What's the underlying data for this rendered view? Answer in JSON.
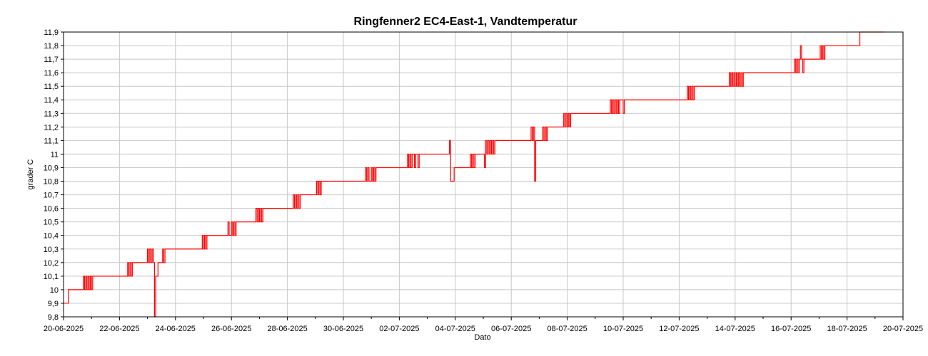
{
  "chart_data": {
    "type": "line",
    "title": "Ringfenner2 EC4-East-1, Vandtemperatur",
    "xlabel": "Dato",
    "ylabel": "grader C",
    "x_tick_labels": [
      "20-06-2025",
      "22-06-2025",
      "24-06-2025",
      "26-06-2025",
      "28-06-2025",
      "30-06-2025",
      "02-07-2025",
      "04-07-2025",
      "06-07-2025",
      "08-07-2025",
      "10-07-2025",
      "12-07-2025",
      "14-07-2025",
      "16-07-2025",
      "18-07-2025",
      "20-07-2025"
    ],
    "y_tick_labels": [
      "9,8",
      "9,9",
      "10",
      "10,1",
      "10,2",
      "10,3",
      "10,4",
      "10,5",
      "10,6",
      "10,7",
      "10,8",
      "10,9",
      "11",
      "11,1",
      "11,2",
      "11,3",
      "11,4",
      "11,5",
      "11,6",
      "11,7",
      "11,8",
      "11,9"
    ],
    "xlim": [
      "2025-06-20",
      "2025-07-20"
    ],
    "ylim": [
      9.8,
      11.9
    ],
    "grid": true,
    "series": [
      {
        "color": "#ff0000",
        "points": [
          [
            "2025-06-20T00:00",
            9.9
          ],
          [
            "2025-06-20T04:00",
            9.9
          ],
          [
            "2025-06-20T04:10",
            10.0
          ],
          [
            "2025-06-20T16:00",
            10.0
          ],
          [
            "2025-06-20T17:00",
            10.1
          ],
          [
            "2025-06-20T18:00",
            10.0
          ],
          [
            "2025-06-20T19:00",
            10.1
          ],
          [
            "2025-06-20T20:00",
            10.0
          ],
          [
            "2025-06-20T21:00",
            10.1
          ],
          [
            "2025-06-20T22:00",
            10.0
          ],
          [
            "2025-06-20T23:00",
            10.1
          ],
          [
            "2025-06-21T00:00",
            10.0
          ],
          [
            "2025-06-21T01:00",
            10.1
          ],
          [
            "2025-06-22T06:00",
            10.1
          ],
          [
            "2025-06-22T07:00",
            10.2
          ],
          [
            "2025-06-22T08:00",
            10.1
          ],
          [
            "2025-06-22T09:00",
            10.2
          ],
          [
            "2025-06-22T10:00",
            10.1
          ],
          [
            "2025-06-22T11:00",
            10.2
          ],
          [
            "2025-06-22T23:00",
            10.2
          ],
          [
            "2025-06-23T00:00",
            10.3
          ],
          [
            "2025-06-23T01:00",
            10.2
          ],
          [
            "2025-06-23T02:00",
            10.3
          ],
          [
            "2025-06-23T03:00",
            10.2
          ],
          [
            "2025-06-23T04:00",
            10.3
          ],
          [
            "2025-06-23T05:00",
            10.2
          ],
          [
            "2025-06-23T06:00",
            9.8
          ],
          [
            "2025-06-23T07:00",
            10.1
          ],
          [
            "2025-06-23T08:00",
            10.1
          ],
          [
            "2025-06-23T09:00",
            10.2
          ],
          [
            "2025-06-23T12:00",
            10.2
          ],
          [
            "2025-06-23T13:00",
            10.3
          ],
          [
            "2025-06-23T14:00",
            10.2
          ],
          [
            "2025-06-23T15:00",
            10.3
          ],
          [
            "2025-06-24T22:00",
            10.3
          ],
          [
            "2025-06-24T23:00",
            10.4
          ],
          [
            "2025-06-25T00:00",
            10.3
          ],
          [
            "2025-06-25T01:00",
            10.4
          ],
          [
            "2025-06-25T02:00",
            10.3
          ],
          [
            "2025-06-25T03:00",
            10.4
          ],
          [
            "2025-06-25T20:00",
            10.4
          ],
          [
            "2025-06-25T21:00",
            10.5
          ],
          [
            "2025-06-25T22:00",
            10.4
          ],
          [
            "2025-06-26T00:00",
            10.5
          ],
          [
            "2025-06-26T01:00",
            10.4
          ],
          [
            "2025-06-26T02:00",
            10.5
          ],
          [
            "2025-06-26T03:00",
            10.4
          ],
          [
            "2025-06-26T04:00",
            10.5
          ],
          [
            "2025-06-26T20:00",
            10.5
          ],
          [
            "2025-06-26T21:00",
            10.6
          ],
          [
            "2025-06-26T22:00",
            10.5
          ],
          [
            "2025-06-26T23:00",
            10.6
          ],
          [
            "2025-06-27T00:00",
            10.5
          ],
          [
            "2025-06-27T01:00",
            10.6
          ],
          [
            "2025-06-27T02:00",
            10.5
          ],
          [
            "2025-06-27T03:00",
            10.6
          ],
          [
            "2025-06-28T04:00",
            10.6
          ],
          [
            "2025-06-28T05:00",
            10.7
          ],
          [
            "2025-06-28T06:00",
            10.6
          ],
          [
            "2025-06-28T07:00",
            10.7
          ],
          [
            "2025-06-28T08:00",
            10.6
          ],
          [
            "2025-06-28T09:00",
            10.7
          ],
          [
            "2025-06-28T10:00",
            10.6
          ],
          [
            "2025-06-28T11:00",
            10.7
          ],
          [
            "2025-06-29T00:00",
            10.7
          ],
          [
            "2025-06-29T01:00",
            10.8
          ],
          [
            "2025-06-29T02:00",
            10.7
          ],
          [
            "2025-06-29T03:00",
            10.8
          ],
          [
            "2025-06-29T04:00",
            10.7
          ],
          [
            "2025-06-29T05:00",
            10.8
          ],
          [
            "2025-06-30T18:00",
            10.8
          ],
          [
            "2025-06-30T19:00",
            10.9
          ],
          [
            "2025-06-30T20:00",
            10.8
          ],
          [
            "2025-06-30T21:00",
            10.9
          ],
          [
            "2025-06-30T22:00",
            10.8
          ],
          [
            "2025-07-01T00:00",
            10.9
          ],
          [
            "2025-07-01T01:00",
            10.8
          ],
          [
            "2025-07-01T02:00",
            10.9
          ],
          [
            "2025-07-01T03:00",
            10.8
          ],
          [
            "2025-07-01T04:00",
            10.9
          ],
          [
            "2025-07-02T06:00",
            10.9
          ],
          [
            "2025-07-02T07:00",
            11.0
          ],
          [
            "2025-07-02T08:00",
            10.9
          ],
          [
            "2025-07-02T09:00",
            11.0
          ],
          [
            "2025-07-02T10:00",
            10.9
          ],
          [
            "2025-07-02T11:00",
            11.0
          ],
          [
            "2025-07-02T13:00",
            10.9
          ],
          [
            "2025-07-02T14:00",
            11.0
          ],
          [
            "2025-07-02T16:00",
            10.9
          ],
          [
            "2025-07-02T17:00",
            11.0
          ],
          [
            "2025-07-03T18:00",
            11.0
          ],
          [
            "2025-07-03T19:00",
            11.1
          ],
          [
            "2025-07-03T20:00",
            10.8
          ],
          [
            "2025-07-03T22:00",
            10.8
          ],
          [
            "2025-07-03T23:00",
            10.9
          ],
          [
            "2025-07-04T12:00",
            10.9
          ],
          [
            "2025-07-04T13:00",
            11.0
          ],
          [
            "2025-07-04T14:00",
            10.9
          ],
          [
            "2025-07-04T15:00",
            11.0
          ],
          [
            "2025-07-04T16:00",
            10.9
          ],
          [
            "2025-07-04T17:00",
            11.0
          ],
          [
            "2025-07-05T00:00",
            11.0
          ],
          [
            "2025-07-05T01:00",
            10.9
          ],
          [
            "2025-07-05T02:00",
            11.1
          ],
          [
            "2025-07-05T03:00",
            11.0
          ],
          [
            "2025-07-05T04:00",
            11.1
          ],
          [
            "2025-07-05T05:00",
            11.0
          ],
          [
            "2025-07-05T06:00",
            11.1
          ],
          [
            "2025-07-05T07:00",
            11.0
          ],
          [
            "2025-07-05T08:00",
            11.1
          ],
          [
            "2025-07-05T09:00",
            11.0
          ],
          [
            "2025-07-05T10:00",
            11.1
          ],
          [
            "2025-07-06T16:00",
            11.1
          ],
          [
            "2025-07-06T17:00",
            11.2
          ],
          [
            "2025-07-06T18:00",
            11.1
          ],
          [
            "2025-07-06T19:00",
            11.2
          ],
          [
            "2025-07-06T20:00",
            10.8
          ],
          [
            "2025-07-06T21:00",
            11.1
          ],
          [
            "2025-07-07T02:00",
            11.1
          ],
          [
            "2025-07-07T03:00",
            11.2
          ],
          [
            "2025-07-07T04:00",
            11.1
          ],
          [
            "2025-07-07T05:00",
            11.2
          ],
          [
            "2025-07-07T06:00",
            11.1
          ],
          [
            "2025-07-07T07:00",
            11.2
          ],
          [
            "2025-07-07T20:00",
            11.2
          ],
          [
            "2025-07-07T21:00",
            11.3
          ],
          [
            "2025-07-07T22:00",
            11.2
          ],
          [
            "2025-07-07T23:00",
            11.3
          ],
          [
            "2025-07-08T00:00",
            11.2
          ],
          [
            "2025-07-08T01:00",
            11.3
          ],
          [
            "2025-07-08T02:00",
            11.2
          ],
          [
            "2025-07-08T03:00",
            11.3
          ],
          [
            "2025-07-09T12:00",
            11.3
          ],
          [
            "2025-07-09T13:00",
            11.4
          ],
          [
            "2025-07-09T14:00",
            11.3
          ],
          [
            "2025-07-09T15:00",
            11.4
          ],
          [
            "2025-07-09T16:00",
            11.3
          ],
          [
            "2025-07-09T17:00",
            11.4
          ],
          [
            "2025-07-09T18:00",
            11.3
          ],
          [
            "2025-07-09T19:00",
            11.4
          ],
          [
            "2025-07-09T20:00",
            11.3
          ],
          [
            "2025-07-09T21:00",
            11.4
          ],
          [
            "2025-07-10T00:00",
            11.3
          ],
          [
            "2025-07-10T01:00",
            11.4
          ],
          [
            "2025-07-12T06:00",
            11.4
          ],
          [
            "2025-07-12T07:00",
            11.5
          ],
          [
            "2025-07-12T08:00",
            11.4
          ],
          [
            "2025-07-12T09:00",
            11.5
          ],
          [
            "2025-07-12T10:00",
            11.4
          ],
          [
            "2025-07-12T11:00",
            11.5
          ],
          [
            "2025-07-12T12:00",
            11.4
          ],
          [
            "2025-07-12T13:00",
            11.5
          ],
          [
            "2025-07-13T18:00",
            11.5
          ],
          [
            "2025-07-13T19:00",
            11.6
          ],
          [
            "2025-07-13T20:00",
            11.5
          ],
          [
            "2025-07-13T21:00",
            11.6
          ],
          [
            "2025-07-13T22:00",
            11.5
          ],
          [
            "2025-07-13T23:00",
            11.6
          ],
          [
            "2025-07-14T00:00",
            11.5
          ],
          [
            "2025-07-14T01:00",
            11.6
          ],
          [
            "2025-07-14T02:00",
            11.5
          ],
          [
            "2025-07-14T03:00",
            11.6
          ],
          [
            "2025-07-14T04:00",
            11.5
          ],
          [
            "2025-07-14T05:00",
            11.6
          ],
          [
            "2025-07-14T06:00",
            11.5
          ],
          [
            "2025-07-14T07:00",
            11.6
          ],
          [
            "2025-07-16T02:00",
            11.6
          ],
          [
            "2025-07-16T03:00",
            11.7
          ],
          [
            "2025-07-16T04:00",
            11.6
          ],
          [
            "2025-07-16T05:00",
            11.7
          ],
          [
            "2025-07-16T06:00",
            11.6
          ],
          [
            "2025-07-16T07:00",
            11.7
          ],
          [
            "2025-07-16T08:00",
            11.8
          ],
          [
            "2025-07-16T09:00",
            11.7
          ],
          [
            "2025-07-16T10:00",
            11.6
          ],
          [
            "2025-07-16T11:00",
            11.7
          ],
          [
            "2025-07-17T00:00",
            11.7
          ],
          [
            "2025-07-17T01:00",
            11.8
          ],
          [
            "2025-07-17T02:00",
            11.7
          ],
          [
            "2025-07-17T03:00",
            11.8
          ],
          [
            "2025-07-17T04:00",
            11.7
          ],
          [
            "2025-07-17T05:00",
            11.8
          ],
          [
            "2025-07-18T10:00",
            11.8
          ],
          [
            "2025-07-18T11:00",
            11.9
          ],
          [
            "2025-07-19T08:00",
            11.9
          ]
        ]
      }
    ]
  }
}
